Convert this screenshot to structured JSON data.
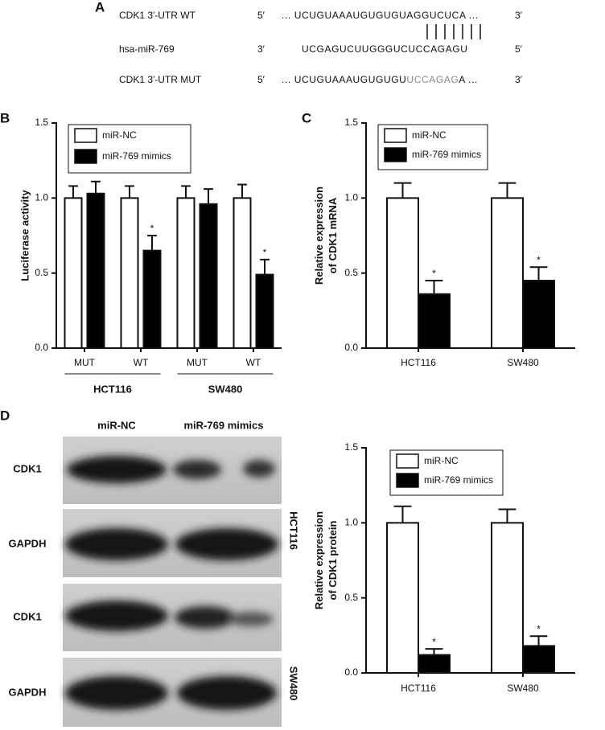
{
  "panel_a": {
    "label": "A",
    "rows": [
      {
        "name": "CDK1 3′-UTR WT",
        "end5": "5′",
        "sequence": [
          "... UCUGUAAAUGUGUGUAGGUCUCA ..."
        ],
        "end3": "3′"
      },
      {
        "name": "hsa-miR-769",
        "end5": "3′",
        "sequence": [
          "UCGAGUCUUGGGUCUCCAGAGU"
        ],
        "end3": "5′"
      },
      {
        "name": "CDK1 3′-UTR MUT",
        "end5": "5′",
        "sequence": [
          "... UCUGUAAAUGUGUGU",
          "UCCAGAG",
          "A ..."
        ],
        "end3": "3′"
      }
    ]
  },
  "blot": {
    "label": "D",
    "columns": [
      "miR-NC",
      "miR-769 mimics"
    ],
    "rows": [
      "CDK1",
      "GAPDH",
      "CDK1",
      "GAPDH"
    ],
    "cell_lines": [
      "HCT116",
      "SW480"
    ]
  },
  "chart_data": [
    {
      "type": "bar",
      "panel": "B",
      "y_label": [
        "Luciferase activity"
      ],
      "categories": [
        "MUT",
        "WT",
        "MUT",
        "WT"
      ],
      "groups": [
        "HCT116",
        "SW480"
      ],
      "series": [
        {
          "name": "miR-NC",
          "color": "#ffffff",
          "values": [
            1.0,
            1.0,
            1.0,
            1.0
          ],
          "errors": [
            0.08,
            0.08,
            0.08,
            0.09
          ],
          "marks": [
            null,
            null,
            null,
            null
          ]
        },
        {
          "name": "miR-769 mimics",
          "color": "#000000",
          "values": [
            1.03,
            0.65,
            0.96,
            0.49
          ],
          "errors": [
            0.08,
            0.1,
            0.1,
            0.1
          ],
          "marks": [
            null,
            "*",
            null,
            "*"
          ]
        }
      ],
      "ylim": [
        0,
        1.5
      ],
      "yticks": [
        {
          "value": 0,
          "label": "0.0"
        },
        {
          "value": 0.5,
          "label": "0.5"
        },
        {
          "value": 1,
          "label": "1.0"
        },
        {
          "value": 1.5,
          "label": "1.5"
        }
      ]
    },
    {
      "type": "bar",
      "panel": "C",
      "y_label": [
        "Relative expression",
        "of CDK1 mRNA"
      ],
      "categories": [
        "HCT116",
        "SW480"
      ],
      "series": [
        {
          "name": "miR-NC",
          "color": "#ffffff",
          "values": [
            1.0,
            1.0
          ],
          "errors": [
            0.1,
            0.1
          ],
          "marks": [
            null,
            null
          ]
        },
        {
          "name": "miR-769 mimics",
          "color": "#000000",
          "values": [
            0.36,
            0.45
          ],
          "errors": [
            0.09,
            0.09
          ],
          "marks": [
            "*",
            "*"
          ]
        }
      ],
      "ylim": [
        0,
        1.5
      ],
      "yticks": [
        {
          "value": 0,
          "label": "0.0"
        },
        {
          "value": 0.5,
          "label": "0.5"
        },
        {
          "value": 1,
          "label": "1.0"
        },
        {
          "value": 1.5,
          "label": "1.5"
        }
      ]
    },
    {
      "type": "bar",
      "y_label": [
        "Relative expression",
        "of CDK1 protein"
      ],
      "categories": [
        "HCT116",
        "SW480"
      ],
      "series": [
        {
          "name": "miR-NC",
          "color": "#ffffff",
          "values": [
            1.0,
            1.0
          ],
          "errors": [
            0.11,
            0.09
          ],
          "marks": [
            null,
            null
          ]
        },
        {
          "name": "miR-769 mimics",
          "color": "#000000",
          "values": [
            0.12,
            0.18
          ],
          "errors": [
            0.04,
            0.065
          ],
          "marks": [
            "*",
            "*"
          ]
        }
      ],
      "ylim": [
        0,
        1.5
      ],
      "yticks": [
        {
          "value": 0,
          "label": "0.0"
        },
        {
          "value": 0.5,
          "label": "0.5"
        },
        {
          "value": 1,
          "label": "1.0"
        },
        {
          "value": 1.5,
          "label": "1.5"
        }
      ]
    }
  ]
}
